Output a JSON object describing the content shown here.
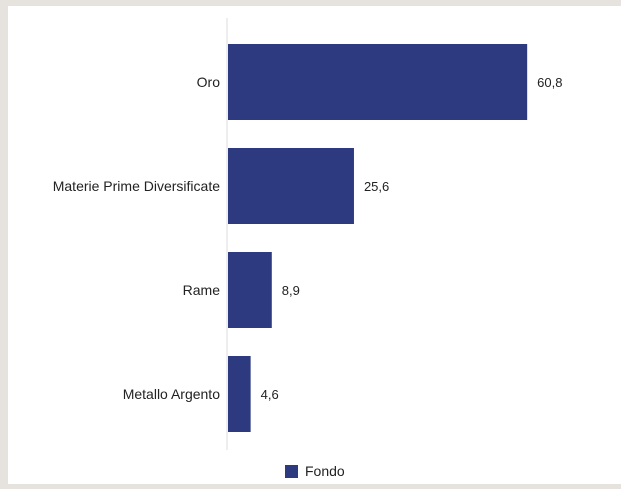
{
  "chart_data": {
    "type": "bar",
    "orientation": "horizontal",
    "categories": [
      "Oro",
      "Materie Prime Diversificate",
      "Rame",
      "Metallo Argento"
    ],
    "series": [
      {
        "name": "Fondo",
        "values": [
          60.8,
          25.6,
          8.9,
          4.6
        ],
        "color": "#2e3a7f"
      }
    ],
    "value_labels": [
      "60,8",
      "25,6",
      "8,9",
      "4,6"
    ],
    "xlim": [
      0,
      63
    ],
    "grid": false,
    "legend": {
      "position": "bottom-center",
      "label": "Fondo"
    }
  },
  "colors": {
    "bar": "#2e3a7f",
    "text": "#222222",
    "axis": "#dddddd",
    "background": "#ffffff",
    "frame": "#e6e3de"
  }
}
